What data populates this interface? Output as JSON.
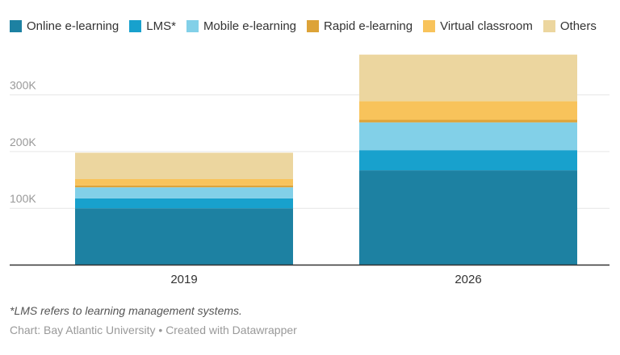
{
  "chart_data": {
    "type": "bar",
    "stacked": true,
    "categories": [
      "2019",
      "2026"
    ],
    "series": [
      {
        "name": "Online e-learning",
        "color": "#1d81a2",
        "values": [
          100,
          167
        ]
      },
      {
        "name": "LMS*",
        "color": "#18a1cd",
        "values": [
          17.5,
          35.5
        ]
      },
      {
        "name": "Mobile e-learning",
        "color": "#82d0e8",
        "values": [
          19.5,
          49
        ]
      },
      {
        "name": "Rapid e-learning",
        "color": "#dda338",
        "values": [
          3.5,
          4.5
        ]
      },
      {
        "name": "Virtual classroom",
        "color": "#f8c35b",
        "values": [
          11,
          33
        ]
      },
      {
        "name": "Others",
        "color": "#ecd69f",
        "values": [
          46.5,
          82
        ]
      }
    ],
    "unit": "thousands",
    "yticks": [
      {
        "v": 100,
        "label": "100K"
      },
      {
        "v": 200,
        "label": "200K"
      },
      {
        "v": 300,
        "label": "300K"
      }
    ],
    "ylim": [
      0,
      371
    ],
    "grid": true,
    "legend": "top"
  },
  "footnote": "*LMS refers to learning management systems.",
  "credit": "Chart: Bay Atlantic University • Created with Datawrapper"
}
